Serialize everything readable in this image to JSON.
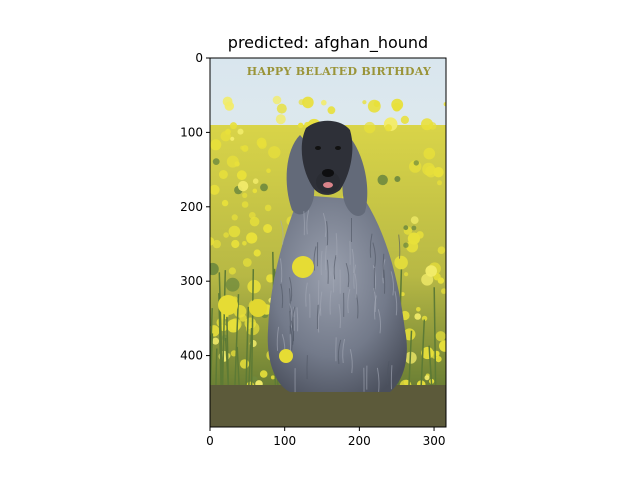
{
  "figure": {
    "title": "predicted: afghan_hound"
  },
  "image": {
    "caption_text": "HAPPY BELATED BIRTHDAY",
    "caption_color": "#9a9438",
    "sky_color": "#dfe9ee",
    "flower_color": "#e8e03a",
    "foliage_color": "#6f8a3e",
    "ground_color": "#5c5a3a",
    "dog_color": "#7d8494",
    "dog_dark_color": "#2e3038"
  },
  "axes": {
    "x_ticks": [
      {
        "value": 0,
        "label": "0"
      },
      {
        "value": 100,
        "label": "100"
      },
      {
        "value": 200,
        "label": "200"
      },
      {
        "value": 300,
        "label": "300"
      }
    ],
    "y_ticks": [
      {
        "value": 0,
        "label": "0"
      },
      {
        "value": 100,
        "label": "100"
      },
      {
        "value": 200,
        "label": "200"
      },
      {
        "value": 300,
        "label": "300"
      },
      {
        "value": 400,
        "label": "400"
      }
    ],
    "x_range": [
      0,
      316
    ],
    "y_range": [
      0,
      496
    ]
  }
}
